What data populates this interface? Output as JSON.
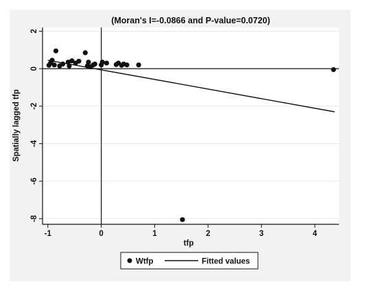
{
  "chart_data": {
    "type": "scatter",
    "title": "(Moran's I=-0.0866 and P-value=0.0720)",
    "xlabel": "tfp",
    "ylabel": "Spatially lagged tfp",
    "xlim": [
      -1.1,
      4.45
    ],
    "ylim": [
      -8.3,
      2.2
    ],
    "x_ticks": [
      -1,
      0,
      1,
      2,
      3,
      4
    ],
    "x_tick_labels": [
      "-1",
      "0",
      "1",
      "2",
      "3",
      "4"
    ],
    "y_ticks": [
      2,
      0,
      -2,
      -4,
      -6,
      -8
    ],
    "y_tick_labels": [
      "2",
      "0",
      "-2",
      "-4",
      "-6",
      "-8"
    ],
    "grid": "horizontal",
    "legend_position": "bottom",
    "reference_lines": {
      "x": 0,
      "y": 0
    },
    "series": [
      {
        "name": "Wtfp",
        "kind": "points",
        "color": "#111111",
        "points": [
          [
            -0.98,
            0.18
          ],
          [
            -0.95,
            0.3
          ],
          [
            -0.92,
            0.45
          ],
          [
            -0.88,
            0.2
          ],
          [
            -0.85,
            0.95
          ],
          [
            -0.78,
            0.15
          ],
          [
            -0.72,
            0.25
          ],
          [
            -0.62,
            0.35
          ],
          [
            -0.6,
            0.15
          ],
          [
            -0.55,
            0.42
          ],
          [
            -0.48,
            0.3
          ],
          [
            -0.42,
            0.4
          ],
          [
            -0.3,
            0.85
          ],
          [
            -0.26,
            0.15
          ],
          [
            -0.24,
            0.35
          ],
          [
            -0.2,
            0.1
          ],
          [
            -0.15,
            0.2
          ],
          [
            -0.12,
            0.25
          ],
          [
            0.0,
            0.2
          ],
          [
            0.02,
            0.35
          ],
          [
            0.1,
            0.3
          ],
          [
            0.28,
            0.22
          ],
          [
            0.32,
            0.3
          ],
          [
            0.38,
            0.18
          ],
          [
            0.42,
            0.25
          ],
          [
            0.48,
            0.2
          ],
          [
            0.7,
            0.2
          ],
          [
            1.52,
            -8.05
          ],
          [
            4.35,
            -0.05
          ]
        ]
      },
      {
        "name": "Fitted values",
        "kind": "line",
        "color": "#111111",
        "points": [
          [
            -1.0,
            0.45
          ],
          [
            4.37,
            -2.3
          ]
        ]
      }
    ]
  }
}
